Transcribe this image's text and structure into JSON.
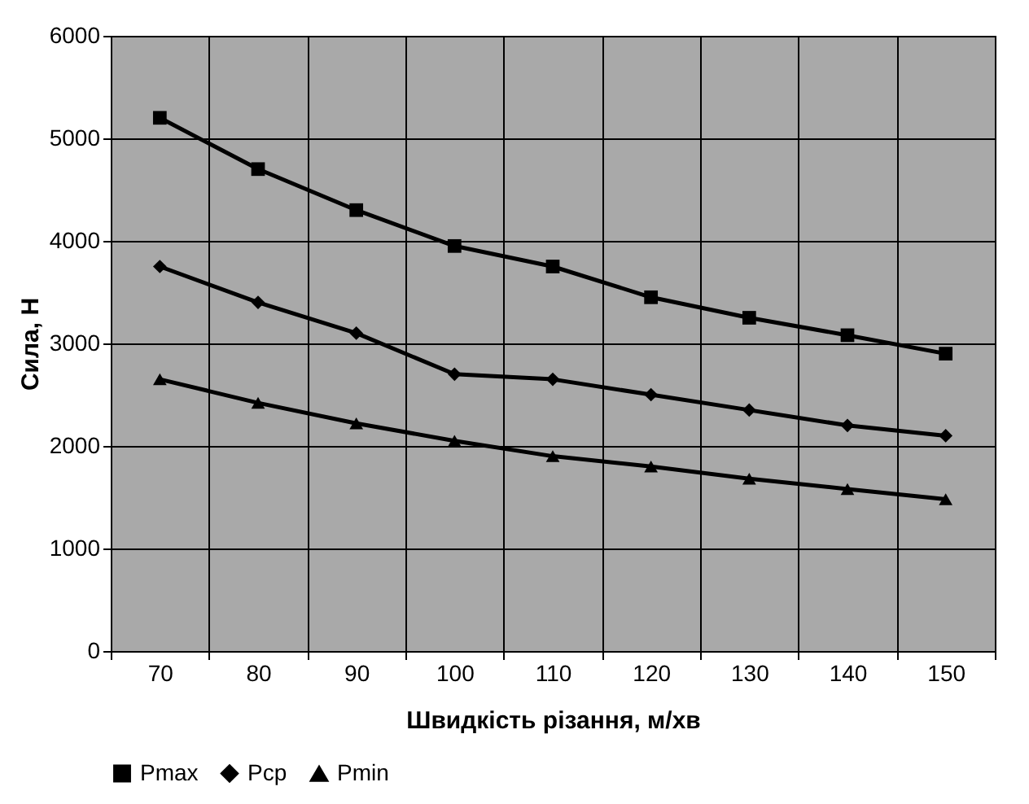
{
  "chart_data": {
    "type": "line",
    "xlabel": "Швидкість різання, м/хв",
    "ylabel": "Сила, Н",
    "categories": [
      "70",
      "80",
      "90",
      "100",
      "110",
      "120",
      "130",
      "140",
      "150"
    ],
    "series": [
      {
        "name": "Pmax",
        "color": "#000000",
        "marker": "square",
        "values": [
          5200,
          4700,
          4300,
          3950,
          3750,
          3450,
          3250,
          3080,
          2900
        ]
      },
      {
        "name": "Pcp",
        "color": "#000000",
        "marker": "diamond",
        "values": [
          3750,
          3400,
          3100,
          2700,
          2650,
          2500,
          2350,
          2200,
          2100
        ]
      },
      {
        "name": "Pmin",
        "color": "#000000",
        "marker": "triangle",
        "values": [
          2650,
          2420,
          2220,
          2050,
          1900,
          1800,
          1680,
          1580,
          1480
        ]
      }
    ],
    "ylim": [
      0,
      6000
    ],
    "yticks": [
      0,
      1000,
      2000,
      3000,
      4000,
      5000,
      6000
    ],
    "grid": true,
    "legend": "bottom",
    "line_style": "solid"
  }
}
